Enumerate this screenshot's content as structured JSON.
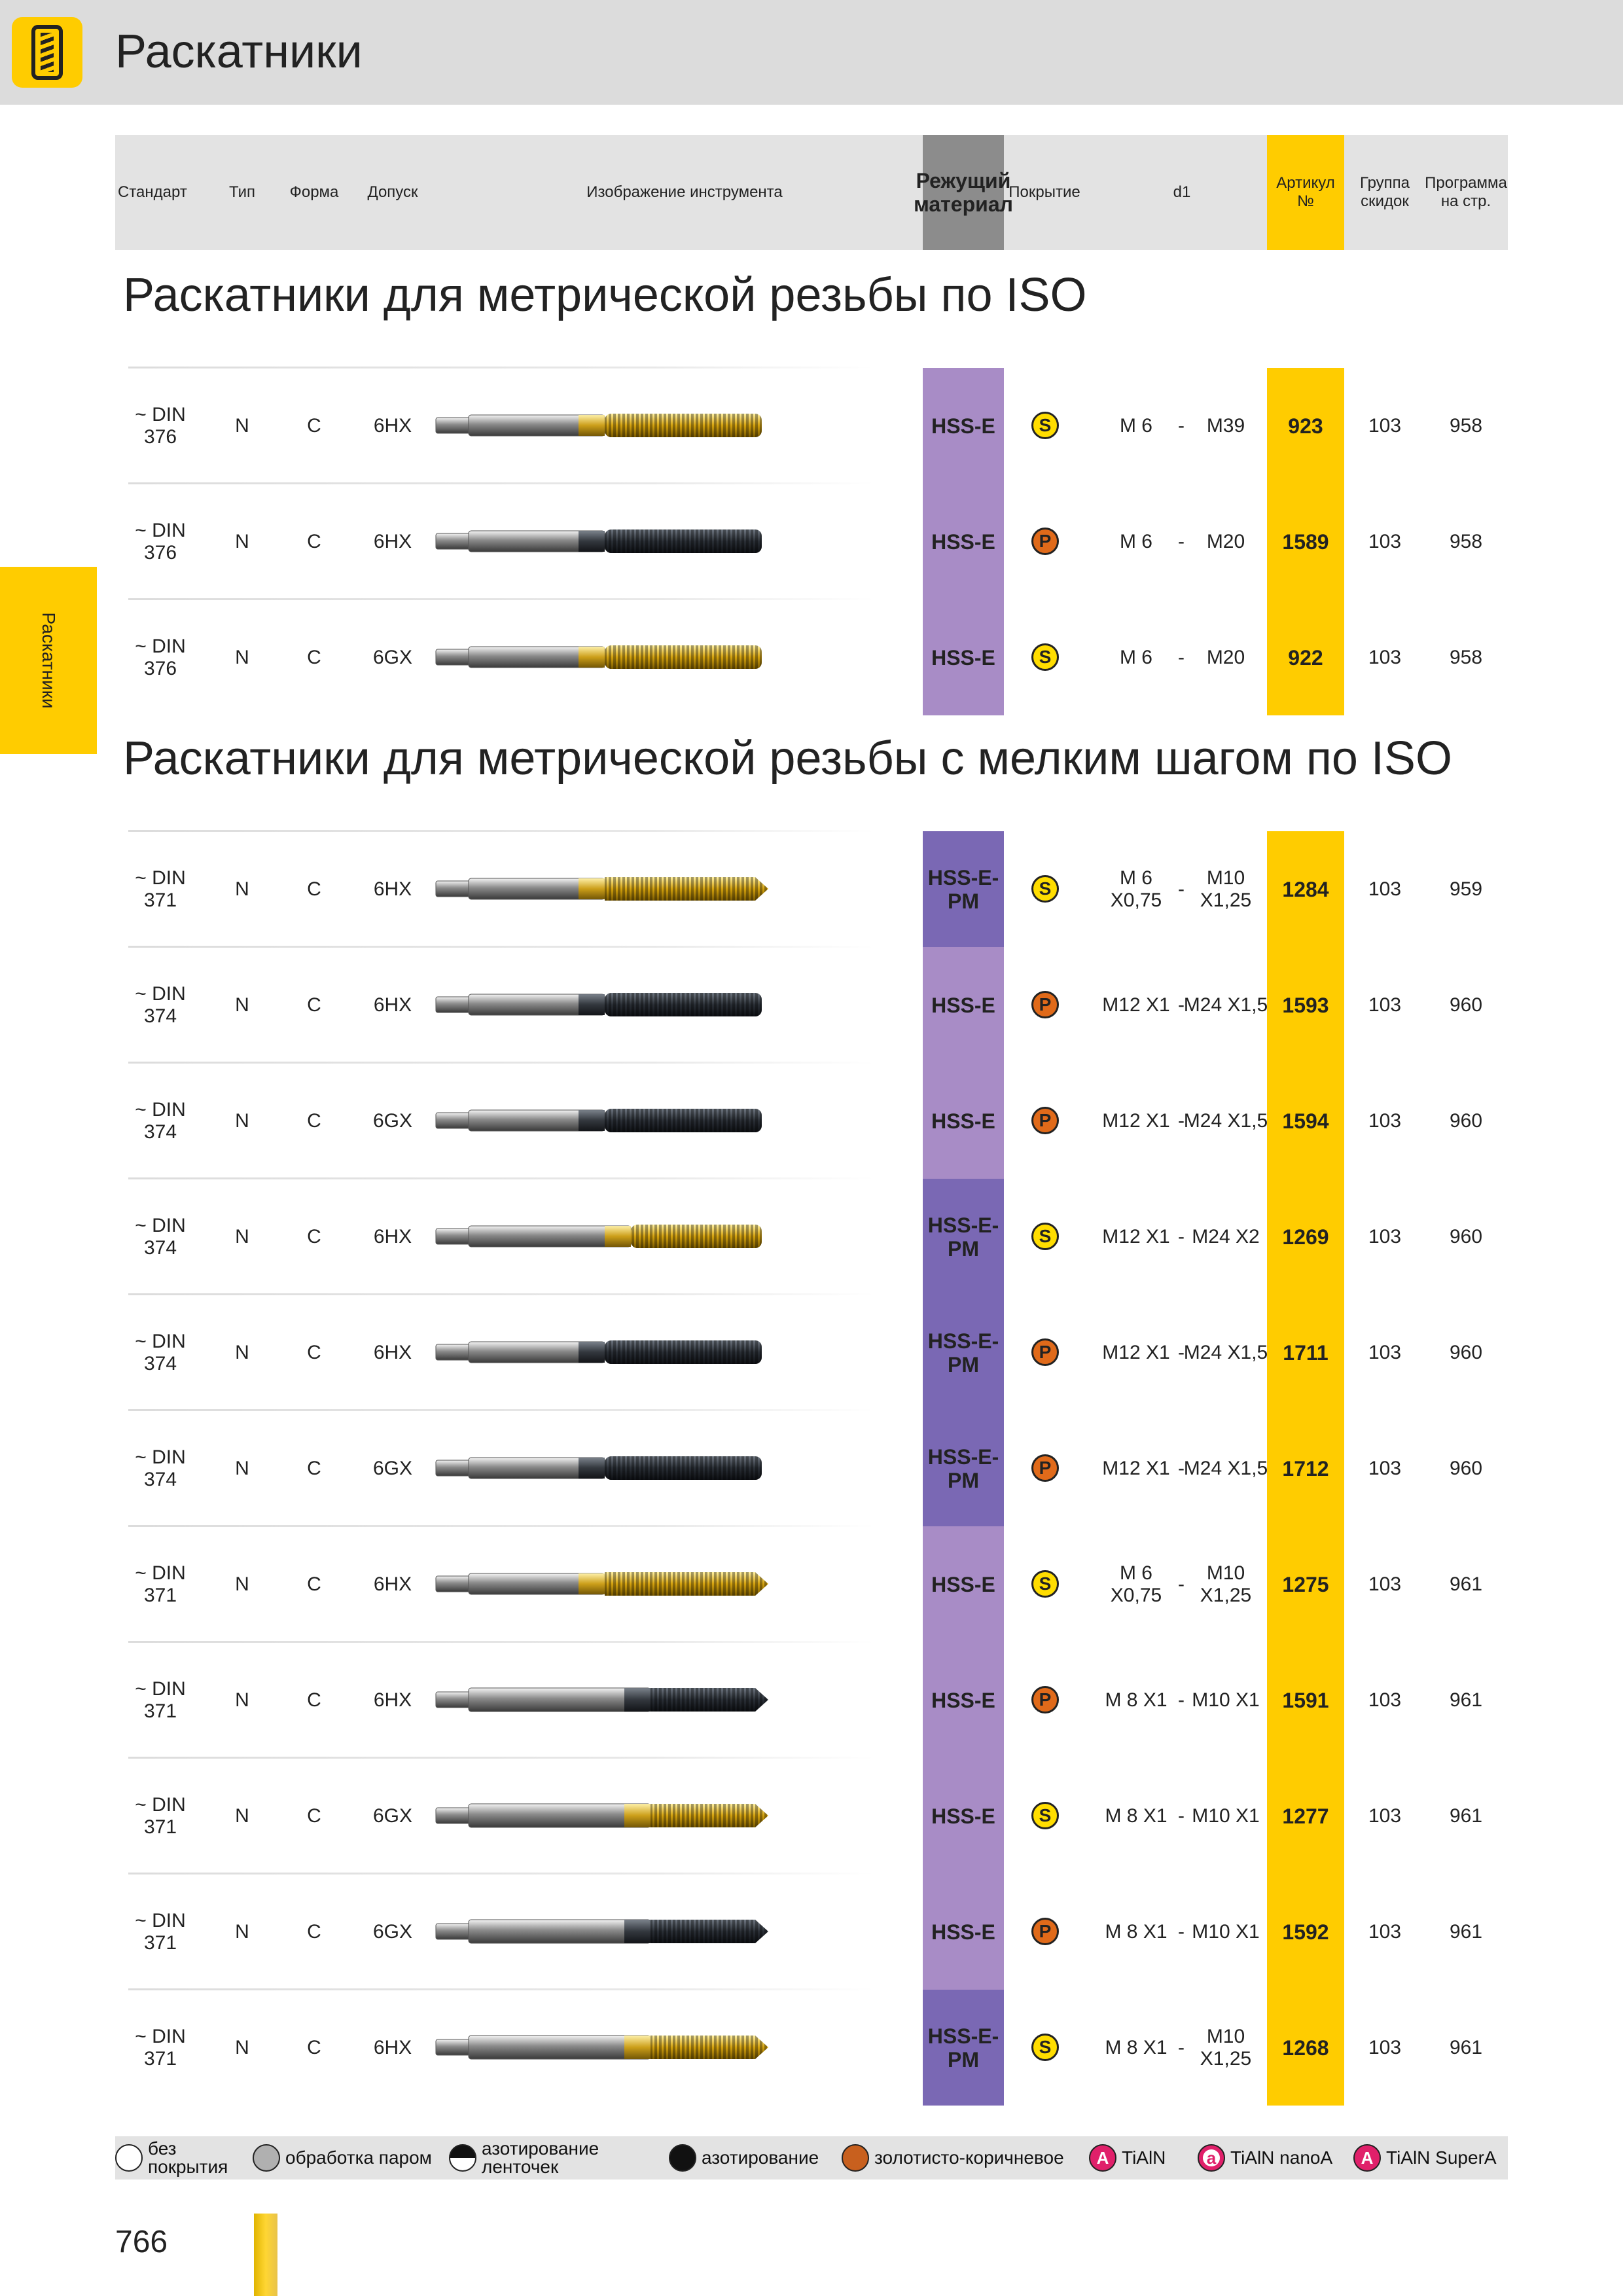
{
  "page_title": "Раскатники",
  "side_tab": "Раскатники",
  "header": {
    "standard": "Стандарт",
    "type": "Тип",
    "form": "Форма",
    "tolerance": "Допуск",
    "image": "Изображение инструмента",
    "material_1": "Режущий",
    "material_2": "материал",
    "coating": "Покрытие",
    "d1": "d1",
    "article_1": "Артикул",
    "article_2": "№",
    "discount_1": "Группа",
    "discount_2": "скидок",
    "program_1": "Программа",
    "program_2": "на стр."
  },
  "sections": [
    {
      "title": "Раскатники для метрической резьбы по ISO",
      "rows": [
        {
          "std1": "~ DIN",
          "std2": "376",
          "type": "N",
          "form": "C",
          "tol": "6HX",
          "tool": "gold-straight",
          "mat1": "HSS-E",
          "mat2": "",
          "mat_pm": false,
          "coat": "S",
          "d1a": "M 6",
          "d1a2": "",
          "dash": "-",
          "d1b": "M39",
          "d1b2": "",
          "article": "923",
          "group": "103",
          "page": "958"
        },
        {
          "std1": "~ DIN",
          "std2": "376",
          "type": "N",
          "form": "C",
          "tol": "6HX",
          "tool": "dark-straight",
          "mat1": "HSS-E",
          "mat2": "",
          "mat_pm": false,
          "coat": "P",
          "d1a": "M 6",
          "d1a2": "",
          "dash": "-",
          "d1b": "M20",
          "d1b2": "",
          "article": "1589",
          "group": "103",
          "page": "958"
        },
        {
          "std1": "~ DIN",
          "std2": "376",
          "type": "N",
          "form": "C",
          "tol": "6GX",
          "tool": "gold-straight",
          "mat1": "HSS-E",
          "mat2": "",
          "mat_pm": false,
          "coat": "S",
          "d1a": "M 6",
          "d1a2": "",
          "dash": "-",
          "d1b": "M20",
          "d1b2": "",
          "article": "922",
          "group": "103",
          "page": "958"
        }
      ]
    },
    {
      "title": "Раскатники для метрической резьбы с мелким шагом по ISO",
      "rows": [
        {
          "std1": "~ DIN",
          "std2": "371",
          "type": "N",
          "form": "C",
          "tol": "6HX",
          "tool": "gold-tapered",
          "mat1": "HSS-E-",
          "mat2": "PM",
          "mat_pm": true,
          "coat": "S",
          "d1a": "M 6",
          "d1a2": "X0,75",
          "dash": "-",
          "d1b": "M10",
          "d1b2": "X1,25",
          "article": "1284",
          "group": "103",
          "page": "959"
        },
        {
          "std1": "~ DIN",
          "std2": "374",
          "type": "N",
          "form": "C",
          "tol": "6HX",
          "tool": "dark-straight",
          "mat1": "HSS-E",
          "mat2": "",
          "mat_pm": false,
          "coat": "P",
          "d1a": "M12 X1",
          "d1a2": "",
          "dash": "-",
          "d1b": "M24 X1,5",
          "d1b2": "",
          "article": "1593",
          "group": "103",
          "page": "960"
        },
        {
          "std1": "~ DIN",
          "std2": "374",
          "type": "N",
          "form": "C",
          "tol": "6GX",
          "tool": "dark-straight",
          "mat1": "HSS-E",
          "mat2": "",
          "mat_pm": false,
          "coat": "P",
          "d1a": "M12 X1",
          "d1a2": "",
          "dash": "-",
          "d1b": "M24 X1,5",
          "d1b2": "",
          "article": "1594",
          "group": "103",
          "page": "960"
        },
        {
          "std1": "~ DIN",
          "std2": "374",
          "type": "N",
          "form": "C",
          "tol": "6HX",
          "tool": "gold-fine",
          "mat1": "HSS-E-",
          "mat2": "PM",
          "mat_pm": true,
          "coat": "S",
          "d1a": "M12 X1",
          "d1a2": "",
          "dash": "-",
          "d1b": "M24 X2",
          "d1b2": "",
          "article": "1269",
          "group": "103",
          "page": "960"
        },
        {
          "std1": "~ DIN",
          "std2": "374",
          "type": "N",
          "form": "C",
          "tol": "6HX",
          "tool": "dark-straight",
          "mat1": "HSS-E-",
          "mat2": "PM",
          "mat_pm": true,
          "coat": "P",
          "d1a": "M12 X1",
          "d1a2": "",
          "dash": "-",
          "d1b": "M24 X1,5",
          "d1b2": "",
          "article": "1711",
          "group": "103",
          "page": "960"
        },
        {
          "std1": "~ DIN",
          "std2": "374",
          "type": "N",
          "form": "C",
          "tol": "6GX",
          "tool": "dark-straight",
          "mat1": "HSS-E-",
          "mat2": "PM",
          "mat_pm": true,
          "coat": "P",
          "d1a": "M12 X1",
          "d1a2": "",
          "dash": "-",
          "d1b": "M24 X1,5",
          "d1b2": "",
          "article": "1712",
          "group": "103",
          "page": "960"
        },
        {
          "std1": "~ DIN",
          "std2": "371",
          "type": "N",
          "form": "C",
          "tol": "6HX",
          "tool": "gold-tapered",
          "mat1": "HSS-E",
          "mat2": "",
          "mat_pm": false,
          "coat": "S",
          "d1a": "M 6",
          "d1a2": "X0,75",
          "dash": "-",
          "d1b": "M10",
          "d1b2": "X1,25",
          "article": "1275",
          "group": "103",
          "page": "961"
        },
        {
          "std1": "~ DIN",
          "std2": "371",
          "type": "N",
          "form": "C",
          "tol": "6HX",
          "tool": "dark-stepped",
          "mat1": "HSS-E",
          "mat2": "",
          "mat_pm": false,
          "coat": "P",
          "d1a": "M 8 X1",
          "d1a2": "",
          "dash": "-",
          "d1b": "M10 X1",
          "d1b2": "",
          "article": "1591",
          "group": "103",
          "page": "961"
        },
        {
          "std1": "~ DIN",
          "std2": "371",
          "type": "N",
          "form": "C",
          "tol": "6GX",
          "tool": "gold-stepped",
          "mat1": "HSS-E",
          "mat2": "",
          "mat_pm": false,
          "coat": "S",
          "d1a": "M 8 X1",
          "d1a2": "",
          "dash": "-",
          "d1b": "M10 X1",
          "d1b2": "",
          "article": "1277",
          "group": "103",
          "page": "961"
        },
        {
          "std1": "~ DIN",
          "std2": "371",
          "type": "N",
          "form": "C",
          "tol": "6GX",
          "tool": "dark-stepped",
          "mat1": "HSS-E",
          "mat2": "",
          "mat_pm": false,
          "coat": "P",
          "d1a": "M 8 X1",
          "d1a2": "",
          "dash": "-",
          "d1b": "M10 X1",
          "d1b2": "",
          "article": "1592",
          "group": "103",
          "page": "961"
        },
        {
          "std1": "~ DIN",
          "std2": "371",
          "type": "N",
          "form": "C",
          "tol": "6HX",
          "tool": "gold-stepped",
          "mat1": "HSS-E-",
          "mat2": "PM",
          "mat_pm": true,
          "coat": "S",
          "d1a": "M 8 X1",
          "d1a2": "",
          "dash": "-",
          "d1b": "M10",
          "d1b2": "X1,25",
          "article": "1268",
          "group": "103",
          "page": "961"
        }
      ]
    }
  ],
  "legend": [
    {
      "icon": "none",
      "label1": "без",
      "label2": "покрытия",
      "color": "#ffffff"
    },
    {
      "icon": "steam",
      "label1": "обработка паром",
      "label2": "",
      "color": "#b0b0b0"
    },
    {
      "icon": "half",
      "label1": "азотирование",
      "label2": "ленточек",
      "color": "#111111"
    },
    {
      "icon": "nitride",
      "label1": "азотирование",
      "label2": "",
      "color": "#111111"
    },
    {
      "icon": "goldbrown",
      "label1": "золотисто-коричневое",
      "label2": "",
      "color": "#c8601e"
    },
    {
      "icon": "tialn",
      "letter": "A",
      "label1": "TiAlN",
      "label2": "",
      "color": "#e0206a"
    },
    {
      "icon": "tialn-nano",
      "letter": "a",
      "label1": "TiAlN nanoA",
      "label2": "",
      "color": "#e0206a"
    },
    {
      "icon": "tialn-super",
      "letter": "A",
      "label1": "TiAlN SuperA",
      "label2": "",
      "color": "#e0206a"
    }
  ],
  "colors": {
    "accent": "#ffcc00",
    "material_hsse": "#a88cc6",
    "material_pm": "#7a68b4",
    "coat_S": "#ffdd00",
    "coat_P": "#e06a1a"
  },
  "page_number": "766"
}
